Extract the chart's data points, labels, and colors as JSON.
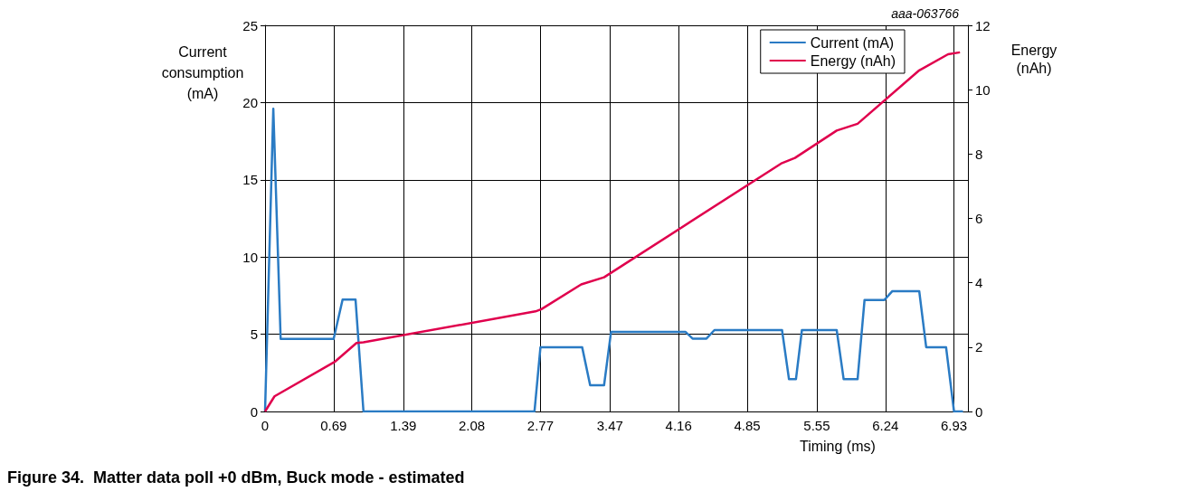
{
  "chart_data": {
    "type": "line",
    "title": "Figure 34.  Matter data poll +0 dBm, Buck mode - estimated",
    "xlabel": "Timing (ms)",
    "ylabel": "Current consumption (mA)",
    "y2label": "Energy (nAh)",
    "annotations": [
      "aaa-063766"
    ],
    "series": [
      {
        "name": "Current (mA)",
        "color": "#2a7bc4",
        "x": [
          0,
          0.083,
          0.157,
          0.69,
          0.78,
          0.91,
          0.99,
          2.71,
          2.77,
          3.19,
          3.27,
          3.41,
          3.48,
          4.23,
          4.3,
          4.44,
          4.52,
          5.2,
          5.27,
          5.34,
          5.4,
          5.75,
          5.82,
          5.96,
          6.03,
          6.23,
          6.31,
          6.58,
          6.65,
          6.85,
          6.93,
          7.02
        ],
        "values": [
          0,
          19.6,
          4.7,
          4.7,
          7.25,
          7.25,
          0,
          0,
          4.15,
          4.15,
          1.7,
          1.7,
          5.15,
          5.15,
          4.72,
          4.72,
          5.27,
          5.27,
          2.09,
          2.09,
          5.27,
          5.27,
          2.09,
          2.09,
          7.22,
          7.22,
          7.79,
          7.79,
          4.16,
          4.16,
          0,
          0
        ]
      },
      {
        "name": "Energy (nAh)",
        "color": "#e0004d",
        "axis": "y2",
        "x": [
          0,
          0.095,
          0.7,
          0.92,
          0.99,
          2.72,
          2.78,
          3.18,
          3.41,
          5.2,
          5.33,
          5.75,
          5.96,
          6.58,
          6.87,
          6.99
        ],
        "values": [
          0,
          0.47,
          1.54,
          2.13,
          2.15,
          3.11,
          3.18,
          3.95,
          4.17,
          7.72,
          7.88,
          8.73,
          8.94,
          10.6,
          11.1,
          11.16
        ]
      }
    ],
    "xlim": [
      0,
      7.07
    ],
    "xticks": [
      0,
      0.69,
      1.39,
      2.08,
      2.77,
      3.47,
      4.16,
      4.85,
      5.55,
      6.24,
      6.93
    ],
    "ylim": [
      0,
      25
    ],
    "yticks": [
      0,
      5,
      10,
      15,
      20,
      25
    ],
    "y2lim": [
      0,
      12
    ],
    "y2ticks": [
      0,
      2,
      4,
      6,
      8,
      10,
      12
    ],
    "grid": true,
    "legend": "top right",
    "marker": "none",
    "line_style": "solid"
  }
}
